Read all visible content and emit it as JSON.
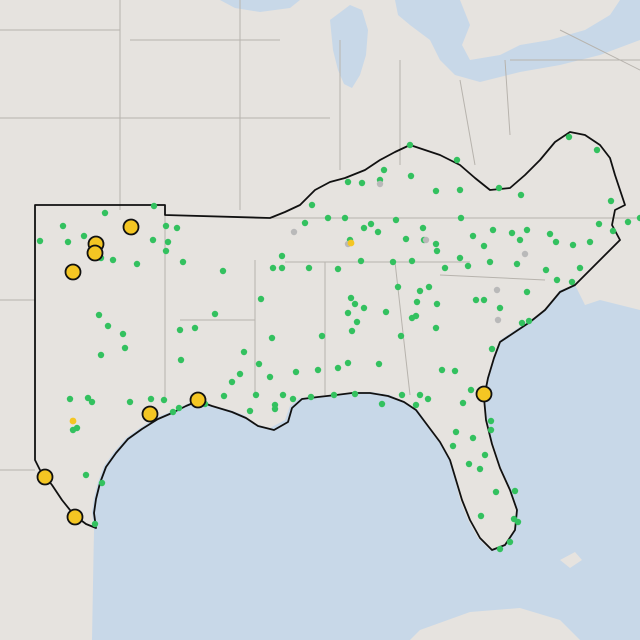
{
  "map": {
    "colors": {
      "land": "#e6e3df",
      "water": "#c8d8e8",
      "state_border": "#b7b3ad",
      "region_outline": "#111111",
      "marker_green": "#33c15f",
      "marker_gray": "#b9b9b9",
      "marker_yellow": "#f4c623"
    },
    "marker_types": [
      {
        "kind": "green",
        "icon": "green-dot-marker"
      },
      {
        "kind": "gray",
        "icon": "gray-dot-marker"
      },
      {
        "kind": "yellow-small",
        "icon": "small-yellow-dot-marker"
      },
      {
        "kind": "yellow-large",
        "icon": "large-yellow-circle-marker"
      }
    ]
  }
}
